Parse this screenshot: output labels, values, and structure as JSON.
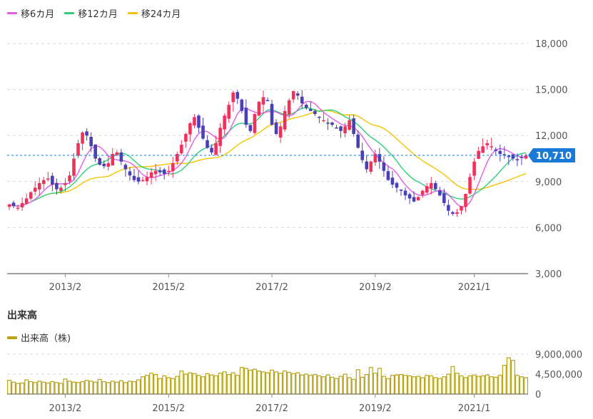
{
  "legend": {
    "ma6_label": "移6カ月",
    "ma12_label": "移12カ月",
    "ma24_label": "移24カ月"
  },
  "volume_section": {
    "title": "出来高",
    "legend_label": "出来高（株)"
  },
  "colors": {
    "ma6": "#e25ce8",
    "ma12": "#2fcf7a",
    "ma24": "#f5c400",
    "up_candle": "#f0325a",
    "down_candle": "#4a3fb5",
    "volume_bar": "#b8a412",
    "current_price_badge": "#1a7bd6",
    "grid": "#d9d9d9",
    "axis": "#888888"
  },
  "chart_data": [
    {
      "type": "candlestick",
      "x_tick_labels": [
        "2013/2",
        "2015/2",
        "2017/2",
        "2019/2",
        "2021/1"
      ],
      "x_tick_months": [
        13,
        37,
        61,
        85,
        108
      ],
      "y_tick_labels": [
        "18,000",
        "15,000",
        "12,000",
        "9,000",
        "6,000",
        "3,000"
      ],
      "y_ticks": [
        18000,
        15000,
        12000,
        9000,
        6000,
        3000
      ],
      "ylim": [
        3000,
        19000
      ],
      "month_count": 121,
      "current_price": 10710,
      "current_price_label": "10,710",
      "grid": true,
      "legend_position": "top-left",
      "series": [
        {
          "name": "移6カ月",
          "role": "ma6"
        },
        {
          "name": "移12カ月",
          "role": "ma12"
        },
        {
          "name": "移24カ月",
          "role": "ma24"
        }
      ],
      "close_values": [
        7500,
        7400,
        7300,
        7600,
        7900,
        8300,
        8600,
        8900,
        9100,
        9200,
        8800,
        8500,
        8600,
        8900,
        9400,
        10500,
        11500,
        12200,
        12000,
        11300,
        10500,
        10100,
        10000,
        10200,
        10800,
        10900,
        10300,
        9800,
        9400,
        9100,
        9000,
        9100,
        9300,
        9600,
        9700,
        9600,
        9500,
        9700,
        10200,
        10800,
        11400,
        12100,
        12800,
        13200,
        12500,
        11800,
        11200,
        10900,
        11500,
        12500,
        13300,
        14000,
        14800,
        14400,
        13600,
        12700,
        12300,
        13400,
        14200,
        14500,
        14300,
        12700,
        12100,
        12600,
        13600,
        14300,
        14900,
        14600,
        14100,
        13800,
        13600,
        13400,
        13200,
        13000,
        12800,
        12700,
        12500,
        12300,
        12600,
        13000,
        12100,
        11200,
        10400,
        9800,
        10300,
        10800,
        10300,
        9700,
        9100,
        8800,
        8600,
        8400,
        8100,
        7900,
        7700,
        8000,
        8400,
        8700,
        8900,
        8500,
        8100,
        7600,
        7100,
        6900,
        7000,
        7400,
        8200,
        9300,
        10300,
        11000,
        11300,
        11500,
        11300,
        11000,
        10800,
        10700,
        10600,
        10500,
        10400,
        10600,
        10710
      ],
      "candle_ranges": [
        {
          "months": "0-17",
          "note": "rise from about 7,500 to 12,200"
        },
        {
          "months": "18-35",
          "note": "range 9,000-11,000"
        },
        {
          "months": "36-60",
          "note": "rise to about 16,000 peak"
        },
        {
          "months": "61-83",
          "note": "decline to about 10,000"
        },
        {
          "months": "84-104",
          "note": "decline to low about 5,700"
        },
        {
          "months": "105-120",
          "note": "recovery to about 12,700 then 10,710"
        }
      ]
    },
    {
      "type": "bar",
      "name": "出来高（株)",
      "y_tick_labels": [
        "9,000,000",
        "4,500,000",
        "0"
      ],
      "y_ticks": [
        9000000,
        4500000,
        0
      ],
      "ylim": [
        0,
        10000000
      ],
      "x_tick_labels": [
        "2013/2",
        "2015/2",
        "2017/2",
        "2019/2",
        "2021/1"
      ],
      "values": [
        3100000,
        2700000,
        2400000,
        2500000,
        3200000,
        2800000,
        2600000,
        2900000,
        2700000,
        2500000,
        2800000,
        2600000,
        2400000,
        3400000,
        2900000,
        2700000,
        2600000,
        2800000,
        3100000,
        2900000,
        2700000,
        3300000,
        2800000,
        2600000,
        2900000,
        2700000,
        3000000,
        2600000,
        2900000,
        2800000,
        3200000,
        3900000,
        4200000,
        4700000,
        4400000,
        3500000,
        4100000,
        3700000,
        3500000,
        4000000,
        5200000,
        4500000,
        4800000,
        4600000,
        4200000,
        3900000,
        4600000,
        4300000,
        4100000,
        4700000,
        5000000,
        4400000,
        4800000,
        4200000,
        6000000,
        5800000,
        5400000,
        5600000,
        5200000,
        5000000,
        4800000,
        5400000,
        5000000,
        4700000,
        5200000,
        4900000,
        4600000,
        4800000,
        4300000,
        4500000,
        4200000,
        4400000,
        4100000,
        3900000,
        4300000,
        3800000,
        3500000,
        4000000,
        4500000,
        3700000,
        3300000,
        5500000,
        3800000,
        4400000,
        6000000,
        4700000,
        5800000,
        4000000,
        3500000,
        4200000,
        4300000,
        4400000,
        4200000,
        4100000,
        3900000,
        4000000,
        3700000,
        4200000,
        4100000,
        3700000,
        3500000,
        3900000,
        4500000,
        6200000,
        4700000,
        4100000,
        3700000,
        4100000,
        4300000,
        4000000,
        4100000,
        4300000,
        3900000,
        3800000,
        4200000,
        6500000,
        8200000,
        7600000,
        4200000,
        3900000,
        3700000
      ]
    }
  ]
}
